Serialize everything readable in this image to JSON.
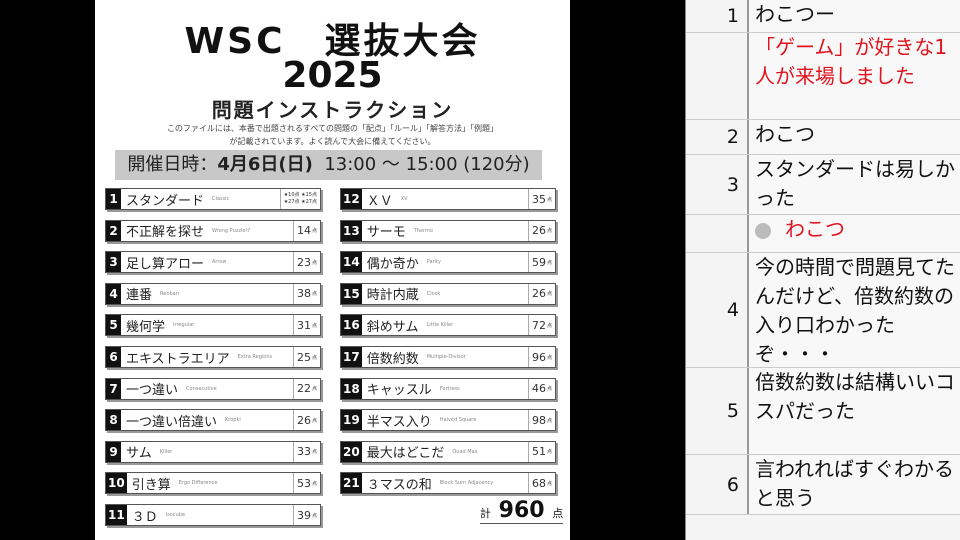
{
  "document": {
    "title": "WSC　選抜大会",
    "year": "2025",
    "subtitle": "問題インストラクション",
    "description_line1": "このファイルには、本番で出題されるすべての問題の「配点」「ルール」「解答方法」「例題」",
    "description_line2": "が記載されています。よく読んで大会に備えてください。",
    "date_label": "開催日時：",
    "date_value": "4月6日(日)",
    "time_value": "13:00 ～ 15:00 (120分)",
    "points_unit": "点",
    "standard_points": [
      "★10点",
      "★15点",
      "★27点",
      "★27点"
    ],
    "puzzles": [
      {
        "no": "1",
        "name": "スタンダード",
        "en": "Classic",
        "points": ""
      },
      {
        "no": "2",
        "name": "不正解を探せ",
        "en": "Wrong Puzzle!?",
        "points": "14"
      },
      {
        "no": "3",
        "name": "足し算アロー",
        "en": "Arrow",
        "points": "23"
      },
      {
        "no": "4",
        "name": "連番",
        "en": "Renban",
        "points": "38"
      },
      {
        "no": "5",
        "name": "幾何学",
        "en": "Irregular",
        "points": "31"
      },
      {
        "no": "6",
        "name": "エキストラエリア",
        "en": "Extra Regions",
        "points": "25"
      },
      {
        "no": "7",
        "name": "一つ違い",
        "en": "Consecutive",
        "points": "22"
      },
      {
        "no": "8",
        "name": "一つ違い倍違い",
        "en": "Kropki",
        "points": "26"
      },
      {
        "no": "9",
        "name": "サム",
        "en": "Killer",
        "points": "33"
      },
      {
        "no": "10",
        "name": "引き算",
        "en": "Ergo Difference",
        "points": "53"
      },
      {
        "no": "11",
        "name": "３Ｄ",
        "en": "Isocube",
        "points": "39"
      },
      {
        "no": "12",
        "name": "ＸＶ",
        "en": "XV",
        "points": "35"
      },
      {
        "no": "13",
        "name": "サーモ",
        "en": "Thermo",
        "points": "26"
      },
      {
        "no": "14",
        "name": "偶か奇か",
        "en": "Parity",
        "points": "59"
      },
      {
        "no": "15",
        "name": "時計内蔵",
        "en": "Clock",
        "points": "26"
      },
      {
        "no": "16",
        "name": "斜めサム",
        "en": "Little Killer",
        "points": "72"
      },
      {
        "no": "17",
        "name": "倍数約数",
        "en": "Multiple-Divisor",
        "points": "96"
      },
      {
        "no": "18",
        "name": "キャッスル",
        "en": "Fortress",
        "points": "46"
      },
      {
        "no": "19",
        "name": "半マス入り",
        "en": "Halved Square",
        "points": "98"
      },
      {
        "no": "20",
        "name": "最大はどこだ",
        "en": "Quad Max",
        "points": "51"
      },
      {
        "no": "21",
        "name": "３マスの和",
        "en": "Block Sum Adjacency",
        "points": "68"
      }
    ],
    "total_label": "計",
    "total": "960"
  },
  "chat": {
    "rows": [
      {
        "no": "1",
        "text": "わこつー",
        "style": "normal"
      },
      {
        "no": "",
        "text": "「ゲーム」が好きな1人が来場しました",
        "style": "system"
      },
      {
        "no": "2",
        "text": "わこつ",
        "style": "normal"
      },
      {
        "no": "3",
        "text": "スタンダードは易しかった",
        "style": "normal"
      },
      {
        "no": "",
        "text": "わこつ",
        "style": "broadcaster"
      },
      {
        "no": "4",
        "text": "今の時間で問題見てたんだけど、倍数約数の入り口わかったぞ・・・",
        "style": "normal"
      },
      {
        "no": "5",
        "text": "倍数約数は結構いいコスパだった",
        "style": "normal"
      },
      {
        "no": "6",
        "text": "言われればすぐわかると思う",
        "style": "normal"
      }
    ]
  },
  "colors": {
    "system_text": "#e0141e",
    "date_bar": "#c8c8c8"
  }
}
